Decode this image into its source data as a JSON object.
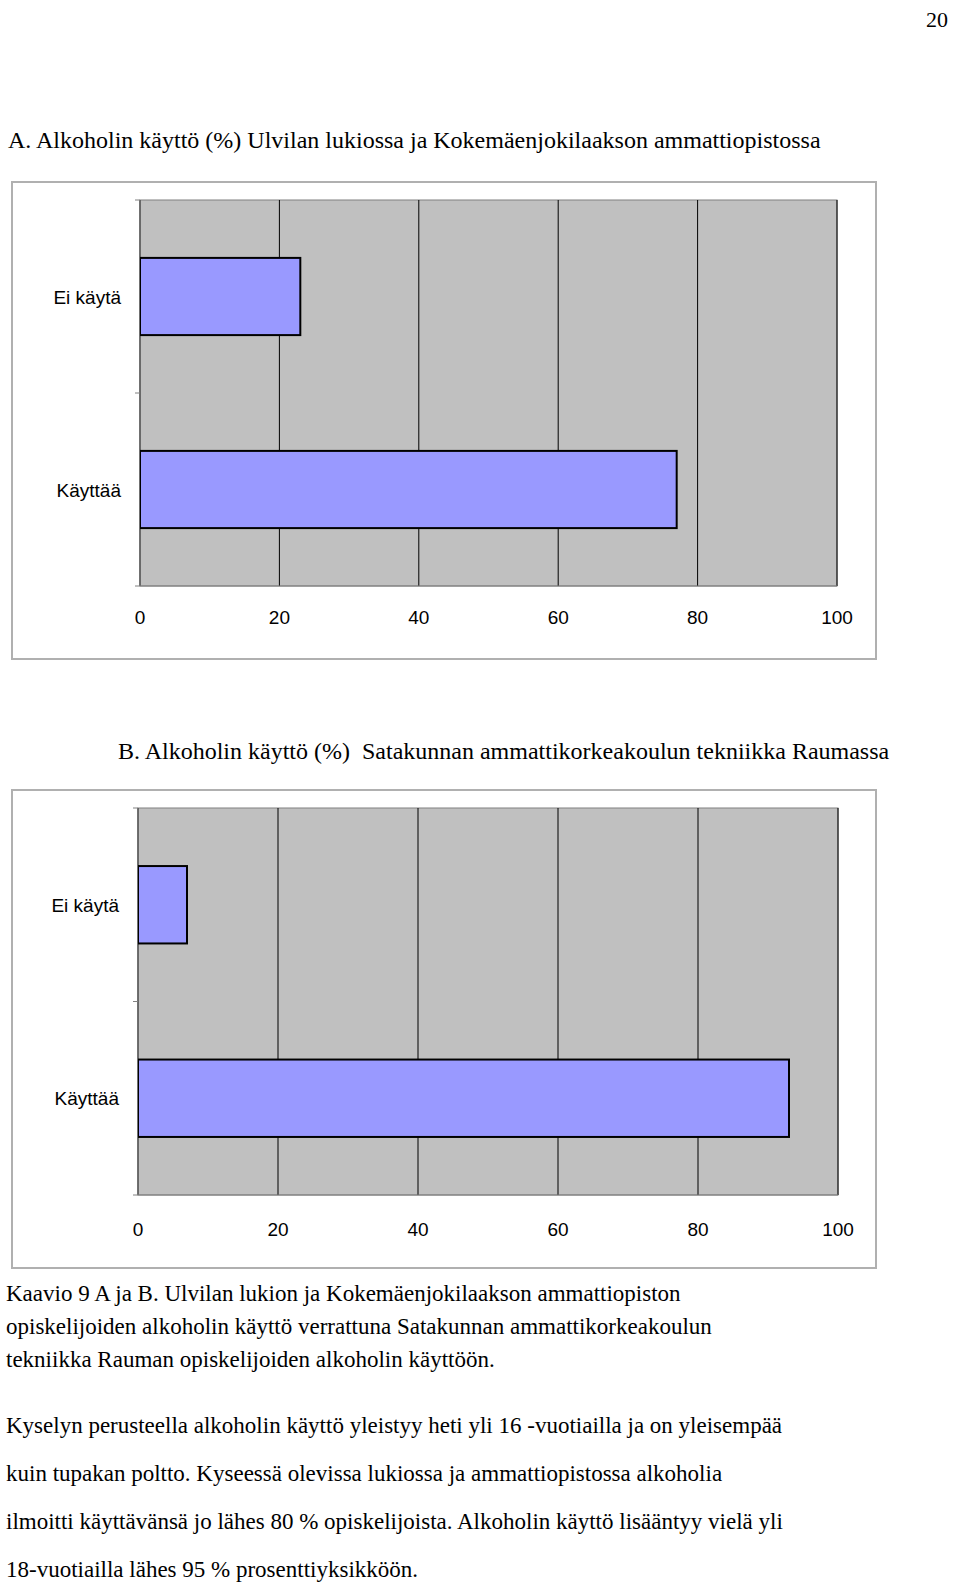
{
  "page_number": "20",
  "chart_data": [
    {
      "type": "bar",
      "orientation": "horizontal",
      "title": "A. Alkoholin käyttö (%) Ulvilan lukiossa ja Kokemäenjokilaakson ammattiopistossa",
      "categories": [
        "Ei käytä",
        "Käyttää"
      ],
      "values": [
        23,
        77
      ],
      "color": "#9999ff",
      "xlim": [
        0,
        100
      ],
      "xticks": [
        0,
        20,
        40,
        60,
        80,
        100
      ],
      "grid": true
    },
    {
      "type": "bar",
      "orientation": "horizontal",
      "title": "B. Alkoholin käyttö (%)  Satakunnan ammattikorkeakoulun tekniikka Raumassa",
      "categories": [
        "Ei käytä",
        "Käyttää"
      ],
      "values": [
        7,
        93
      ],
      "color": "#9999ff",
      "xlim": [
        0,
        100
      ],
      "xticks": [
        0,
        20,
        40,
        60,
        80,
        100
      ],
      "grid": true
    }
  ],
  "caption": [
    "Kaavio 9 A ja B. Ulvilan lukion ja Kokemäenjokilaakson ammattiopiston",
    "opiskelijoiden alkoholin käyttö verrattuna Satakunnan ammattikorkeakoulun",
    "tekniikka Rauman opiskelijoiden alkoholin käyttöön."
  ],
  "paragraph": [
    "Kyselyn perusteella alkoholin käyttö yleistyy heti yli 16 -vuotiailla ja on yleisempää",
    "kuin tupakan poltto. Kyseessä olevissa lukiossa ja ammattiopistossa alkoholia",
    "ilmoitti käyttävänsä jo lähes 80 % opiskelijoista. Alkoholin käyttö lisääntyy vielä yli",
    "18-vuotiailla lähes 95 % prosenttiyksikköön."
  ]
}
